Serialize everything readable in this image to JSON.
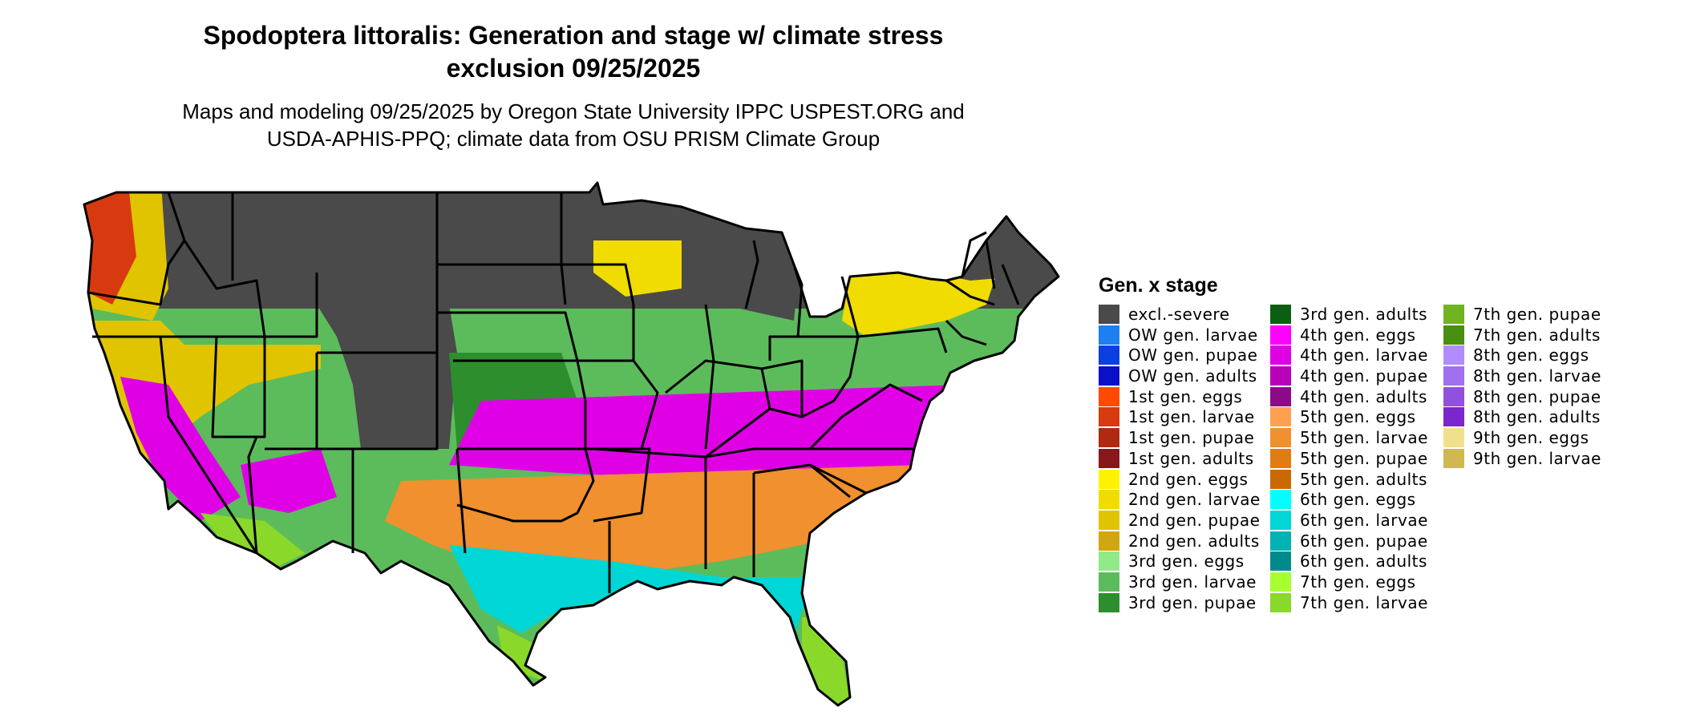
{
  "title_line1": "Spodoptera littoralis: Generation and stage w/ climate stress",
  "title_line2": "exclusion 09/25/2025",
  "subtitle_line1": "Maps and modeling 09/25/2025 by Oregon State University IPPC USPEST.ORG and",
  "subtitle_line2": "USDA-APHIS-PPQ; climate data from OSU PRISM Climate Group",
  "legend": {
    "title": "Gen. x stage",
    "columns": [
      [
        {
          "label": "excl.-severe",
          "color": "#4a4a4a"
        },
        {
          "label": "OW gen. larvae",
          "color": "#1e7ff0"
        },
        {
          "label": "OW gen. pupae",
          "color": "#0a3fe0"
        },
        {
          "label": "OW gen. adults",
          "color": "#0a10c8"
        },
        {
          "label": "1st gen. eggs",
          "color": "#ff4a00"
        },
        {
          "label": "1st gen. larvae",
          "color": "#d83a10"
        },
        {
          "label": "1st gen. pupae",
          "color": "#b02a12"
        },
        {
          "label": "1st gen. adults",
          "color": "#88181a"
        },
        {
          "label": "2nd gen. eggs",
          "color": "#fff200"
        },
        {
          "label": "2nd gen. larvae",
          "color": "#f0dc00"
        },
        {
          "label": "2nd gen. pupae",
          "color": "#e0c400"
        },
        {
          "label": "2nd gen. adults",
          "color": "#cfa810"
        },
        {
          "label": "3rd gen. eggs",
          "color": "#90ea88"
        },
        {
          "label": "3rd gen. larvae",
          "color": "#5cbc5c"
        },
        {
          "label": "3rd gen. pupae",
          "color": "#2c8e2c"
        }
      ],
      [
        {
          "label": "3rd gen. adults",
          "color": "#0a6010"
        },
        {
          "label": "4th gen. eggs",
          "color": "#ff00ff"
        },
        {
          "label": "4th gen. larvae",
          "color": "#e000e6"
        },
        {
          "label": "4th gen. pupae",
          "color": "#b800b8"
        },
        {
          "label": "4th gen. adults",
          "color": "#8a0a8a"
        },
        {
          "label": "5th gen. eggs",
          "color": "#ffa050"
        },
        {
          "label": "5th gen. larvae",
          "color": "#f0902e"
        },
        {
          "label": "5th gen. pupae",
          "color": "#e07c14"
        },
        {
          "label": "5th gen. adults",
          "color": "#c86a00"
        },
        {
          "label": "6th gen. eggs",
          "color": "#00ffff"
        },
        {
          "label": "6th gen. larvae",
          "color": "#00d6d6"
        },
        {
          "label": "6th gen. pupae",
          "color": "#00b2b2"
        },
        {
          "label": "6th gen. adults",
          "color": "#008a8a"
        },
        {
          "label": "7th gen. eggs",
          "color": "#a8ff30"
        },
        {
          "label": "7th gen. larvae",
          "color": "#8ad82a"
        }
      ],
      [
        {
          "label": "7th gen. pupae",
          "color": "#70b420"
        },
        {
          "label": "7th gen. adults",
          "color": "#4a9010"
        },
        {
          "label": "8th gen. eggs",
          "color": "#b08cff"
        },
        {
          "label": "8th gen. larvae",
          "color": "#a070f0"
        },
        {
          "label": "8th gen. pupae",
          "color": "#9050e0"
        },
        {
          "label": "8th gen. adults",
          "color": "#7a28cc"
        },
        {
          "label": "9th gen. eggs",
          "color": "#f0e08c"
        },
        {
          "label": "9th gen. larvae",
          "color": "#d0b850"
        }
      ]
    ]
  }
}
